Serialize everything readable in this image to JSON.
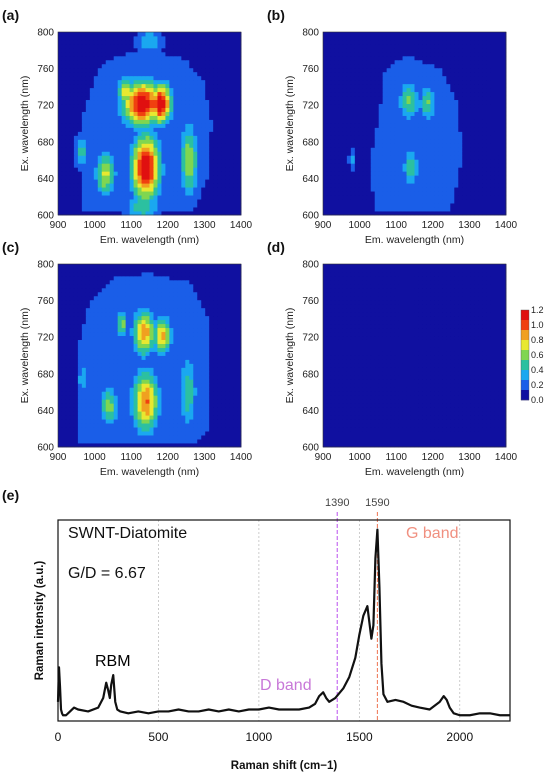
{
  "panels": [
    {
      "label": "(a)",
      "xlabel": "Em. wavelength (nm)",
      "ylabel": "Ex. wavelength (nm)",
      "xticks": [
        900,
        1000,
        1100,
        1200,
        1300,
        1400
      ],
      "yticks": [
        600,
        640,
        680,
        720,
        760,
        800
      ]
    },
    {
      "label": "(b)",
      "xlabel": "Em. wavelength (nm)",
      "ylabel": "Ex. wavelength (nm)",
      "xticks": [
        900,
        1000,
        1100,
        1200,
        1300,
        1400
      ],
      "yticks": [
        600,
        640,
        680,
        720,
        760,
        800
      ]
    },
    {
      "label": "(c)",
      "xlabel": "Em. wavelength (nm)",
      "ylabel": "Ex. wavelength (nm)",
      "xticks": [
        900,
        1000,
        1100,
        1200,
        1300,
        1400
      ],
      "yticks": [
        600,
        640,
        680,
        720,
        760,
        800
      ]
    },
    {
      "label": "(d)",
      "xlabel": "Em. wavelength (nm)",
      "ylabel": "Ex. wavelength (nm)",
      "xticks": [
        900,
        1000,
        1100,
        1200,
        1300,
        1400
      ],
      "yticks": [
        600,
        640,
        680,
        720,
        760,
        800
      ]
    }
  ],
  "colorbar": {
    "ticks": [
      "1.2",
      "1.0",
      "0.8",
      "0.6",
      "0.4",
      "0.2",
      "0.0"
    ],
    "colors": [
      "#1010a0",
      "#1a5ee8",
      "#1aa8f0",
      "#2cc0a0",
      "#80d650",
      "#e8e830",
      "#f0a020",
      "#f04010",
      "#e01010"
    ]
  },
  "raman": {
    "label": "(e)",
    "sample": "SWNT-Diatomite",
    "ratio": "G/D = 6.67",
    "xlabel": "Raman shift (cm−1)",
    "ylabel": "Raman intensity (a.u.)",
    "xticks": [
      0,
      500,
      1000,
      1500,
      2000
    ],
    "peak_labels": [
      {
        "text": "RBM",
        "color": "#000000"
      },
      {
        "text": "D band",
        "color": "#c878d8"
      },
      {
        "text": "G band",
        "color": "#f09080"
      }
    ],
    "marker_labels": [
      "1390",
      "1590"
    ],
    "marker_colors": [
      "#c060f0",
      "#f08060"
    ]
  },
  "chart_data": [
    {
      "type": "heatmap",
      "panel": "(a)",
      "x_range": [
        900,
        1400
      ],
      "y_range": [
        600,
        800
      ],
      "zlim": [
        0,
        1.2
      ],
      "background": 0.1,
      "baseline_mask": [
        [
          960,
          605
        ],
        [
          960,
          700
        ],
        [
          985,
          730
        ],
        [
          1010,
          760
        ],
        [
          1060,
          775
        ],
        [
          1160,
          780
        ],
        [
          1250,
          770
        ],
        [
          1300,
          745
        ],
        [
          1320,
          700
        ],
        [
          1310,
          640
        ],
        [
          1270,
          605
        ]
      ],
      "peaks": [
        {
          "x": 1130,
          "y": 722,
          "z": 1.2,
          "sx": 38,
          "sy": 18
        },
        {
          "x": 1180,
          "y": 722,
          "z": 1.2,
          "sx": 22,
          "sy": 16
        },
        {
          "x": 1140,
          "y": 652,
          "z": 1.2,
          "sx": 28,
          "sy": 26
        },
        {
          "x": 1085,
          "y": 735,
          "z": 0.75,
          "sx": 16,
          "sy": 12
        },
        {
          "x": 1030,
          "y": 645,
          "z": 0.7,
          "sx": 20,
          "sy": 18
        },
        {
          "x": 965,
          "y": 670,
          "z": 0.45,
          "sx": 15,
          "sy": 14
        },
        {
          "x": 1258,
          "y": 660,
          "z": 0.65,
          "sx": 18,
          "sy": 30
        },
        {
          "x": 1150,
          "y": 790,
          "z": 0.4,
          "sx": 30,
          "sy": 10
        },
        {
          "x": 1130,
          "y": 610,
          "z": 0.5,
          "sx": 35,
          "sy": 12
        }
      ]
    },
    {
      "type": "heatmap",
      "panel": "(b)",
      "x_range": [
        900,
        1400
      ],
      "y_range": [
        600,
        800
      ],
      "zlim": [
        0,
        1.2
      ],
      "background": 0.08,
      "baseline_mask": [
        [
          1040,
          605
        ],
        [
          1030,
          660
        ],
        [
          1050,
          700
        ],
        [
          1070,
          760
        ],
        [
          1130,
          775
        ],
        [
          1220,
          760
        ],
        [
          1270,
          720
        ],
        [
          1280,
          660
        ],
        [
          1250,
          605
        ]
      ],
      "peaks": [
        {
          "x": 1135,
          "y": 725,
          "z": 0.55,
          "sx": 20,
          "sy": 16
        },
        {
          "x": 1185,
          "y": 722,
          "z": 0.55,
          "sx": 16,
          "sy": 14
        },
        {
          "x": 1140,
          "y": 652,
          "z": 0.5,
          "sx": 16,
          "sy": 16
        },
        {
          "x": 980,
          "y": 660,
          "z": 0.3,
          "sx": 8,
          "sy": 10
        }
      ]
    },
    {
      "type": "heatmap",
      "panel": "(c)",
      "x_range": [
        900,
        1400
      ],
      "y_range": [
        600,
        800
      ],
      "zlim": [
        0,
        1.2
      ],
      "background": 0.1,
      "baseline_mask": [
        [
          955,
          605
        ],
        [
          950,
          700
        ],
        [
          985,
          760
        ],
        [
          1050,
          785
        ],
        [
          1150,
          790
        ],
        [
          1260,
          780
        ],
        [
          1310,
          740
        ],
        [
          1310,
          620
        ],
        [
          1280,
          605
        ]
      ],
      "peaks": [
        {
          "x": 1135,
          "y": 725,
          "z": 0.9,
          "sx": 22,
          "sy": 18
        },
        {
          "x": 1185,
          "y": 722,
          "z": 0.85,
          "sx": 18,
          "sy": 15
        },
        {
          "x": 1140,
          "y": 650,
          "z": 0.95,
          "sx": 26,
          "sy": 24
        },
        {
          "x": 1075,
          "y": 735,
          "z": 0.6,
          "sx": 12,
          "sy": 10
        },
        {
          "x": 1040,
          "y": 645,
          "z": 0.6,
          "sx": 18,
          "sy": 16
        },
        {
          "x": 970,
          "y": 675,
          "z": 0.4,
          "sx": 12,
          "sy": 12
        },
        {
          "x": 1255,
          "y": 660,
          "z": 0.5,
          "sx": 18,
          "sy": 30
        }
      ]
    },
    {
      "type": "heatmap",
      "panel": "(d)",
      "x_range": [
        900,
        1400
      ],
      "y_range": [
        600,
        800
      ],
      "zlim": [
        0,
        1.2
      ],
      "background": 0.0,
      "baseline_mask": [],
      "peaks": []
    },
    {
      "type": "line",
      "panel": "(e)",
      "xlim": [
        0,
        2250
      ],
      "ylim": [
        0,
        1.05
      ],
      "x": [
        0,
        5,
        10,
        15,
        20,
        25,
        40,
        60,
        80,
        100,
        150,
        200,
        225,
        240,
        250,
        258,
        265,
        275,
        285,
        295,
        310,
        350,
        400,
        450,
        500,
        550,
        600,
        650,
        700,
        750,
        800,
        850,
        900,
        950,
        1000,
        1050,
        1100,
        1150,
        1200,
        1250,
        1280,
        1300,
        1320,
        1335,
        1350,
        1380,
        1420,
        1450,
        1480,
        1500,
        1520,
        1540,
        1560,
        1570,
        1580,
        1590,
        1600,
        1610,
        1620,
        1640,
        1680,
        1720,
        1760,
        1800,
        1850,
        1900,
        1920,
        1935,
        1950,
        1970,
        2000,
        2050,
        2100,
        2150,
        2200,
        2250
      ],
      "y": [
        0.1,
        0.28,
        0.18,
        0.06,
        0.04,
        0.03,
        0.03,
        0.05,
        0.07,
        0.06,
        0.05,
        0.07,
        0.12,
        0.2,
        0.16,
        0.12,
        0.19,
        0.24,
        0.1,
        0.06,
        0.05,
        0.04,
        0.05,
        0.04,
        0.05,
        0.05,
        0.06,
        0.05,
        0.05,
        0.06,
        0.05,
        0.06,
        0.05,
        0.06,
        0.06,
        0.07,
        0.06,
        0.06,
        0.06,
        0.07,
        0.09,
        0.13,
        0.15,
        0.12,
        0.1,
        0.12,
        0.17,
        0.23,
        0.33,
        0.45,
        0.55,
        0.6,
        0.43,
        0.5,
        0.85,
        1.0,
        0.7,
        0.3,
        0.14,
        0.1,
        0.11,
        0.1,
        0.08,
        0.07,
        0.06,
        0.1,
        0.13,
        0.11,
        0.07,
        0.04,
        0.03,
        0.03,
        0.04,
        0.04,
        0.03,
        0.03
      ],
      "vlines": [
        1390,
        1590
      ],
      "grid_x": [
        500,
        1000,
        1500,
        2000
      ]
    }
  ]
}
